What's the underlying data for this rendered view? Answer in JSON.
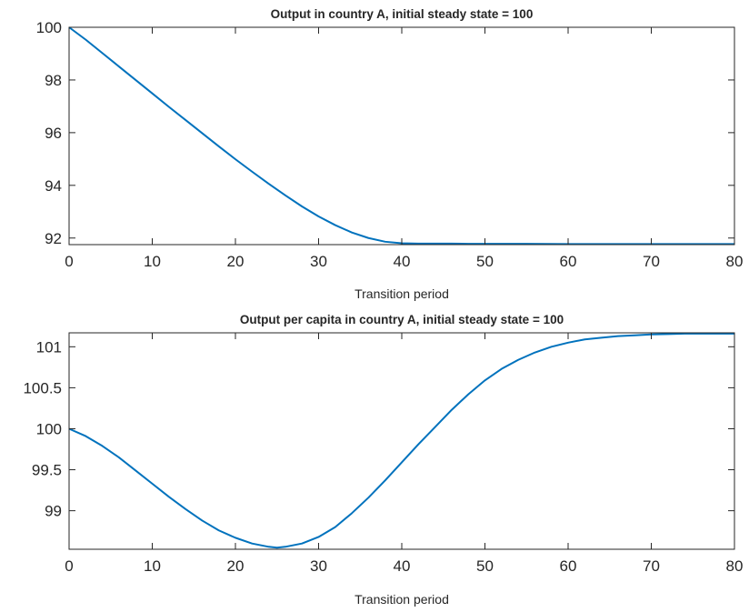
{
  "chart_data": [
    {
      "type": "line",
      "title": "Output in country A, initial steady state = 100",
      "xlabel": "Transition period",
      "ylabel": "",
      "xlim": [
        0,
        80
      ],
      "ylim": [
        91.75,
        100
      ],
      "xticks": [
        0,
        10,
        20,
        30,
        40,
        50,
        60,
        70,
        80
      ],
      "xtick_labels": [
        "0",
        "10",
        "20",
        "30",
        "40",
        "50",
        "60",
        "70",
        "80"
      ],
      "yticks": [
        92,
        94,
        96,
        98,
        100
      ],
      "ytick_labels": [
        "92",
        "94",
        "96",
        "98",
        "100"
      ],
      "grid": false,
      "color": "#0072BD",
      "series": [
        {
          "x": [
            0,
            2,
            4,
            6,
            8,
            10,
            12,
            14,
            16,
            18,
            20,
            22,
            24,
            26,
            28,
            30,
            32,
            34,
            36,
            38,
            40,
            42,
            44,
            46,
            48,
            50,
            55,
            60,
            65,
            70,
            75,
            80
          ],
          "values": [
            100.0,
            99.53,
            99.02,
            98.51,
            98.0,
            97.49,
            96.98,
            96.48,
            95.98,
            95.48,
            94.99,
            94.52,
            94.06,
            93.62,
            93.2,
            92.82,
            92.49,
            92.21,
            92.0,
            91.86,
            91.8,
            91.79,
            91.79,
            91.79,
            91.78,
            91.78,
            91.78,
            91.77,
            91.77,
            91.77,
            91.77,
            91.77
          ]
        }
      ]
    },
    {
      "type": "line",
      "title": "Output per capita in country A, initial steady state = 100",
      "xlabel": "Transition period",
      "ylabel": "",
      "xlim": [
        0,
        80
      ],
      "ylim": [
        98.53,
        101.17
      ],
      "xticks": [
        0,
        10,
        20,
        30,
        40,
        50,
        60,
        70,
        80
      ],
      "xtick_labels": [
        "0",
        "10",
        "20",
        "30",
        "40",
        "50",
        "60",
        "70",
        "80"
      ],
      "yticks": [
        99,
        99.5,
        100,
        100.5,
        101
      ],
      "ytick_labels": [
        "99",
        "99.5",
        "100",
        "100.5",
        "101"
      ],
      "grid": false,
      "color": "#0072BD",
      "series": [
        {
          "x": [
            0,
            2,
            4,
            6,
            8,
            10,
            12,
            14,
            16,
            18,
            20,
            22,
            24,
            25,
            26,
            28,
            30,
            32,
            34,
            36,
            38,
            40,
            42,
            44,
            46,
            48,
            50,
            52,
            54,
            56,
            58,
            60,
            62,
            64,
            66,
            68,
            70,
            72,
            74,
            76,
            78,
            80
          ],
          "values": [
            100.0,
            99.91,
            99.79,
            99.65,
            99.49,
            99.33,
            99.17,
            99.02,
            98.88,
            98.76,
            98.67,
            98.6,
            98.56,
            98.55,
            98.56,
            98.6,
            98.68,
            98.8,
            98.97,
            99.16,
            99.37,
            99.59,
            99.81,
            100.02,
            100.23,
            100.42,
            100.59,
            100.73,
            100.84,
            100.93,
            101.0,
            101.05,
            101.09,
            101.11,
            101.13,
            101.14,
            101.15,
            101.155,
            101.16,
            101.16,
            101.16,
            101.16
          ]
        }
      ]
    }
  ]
}
